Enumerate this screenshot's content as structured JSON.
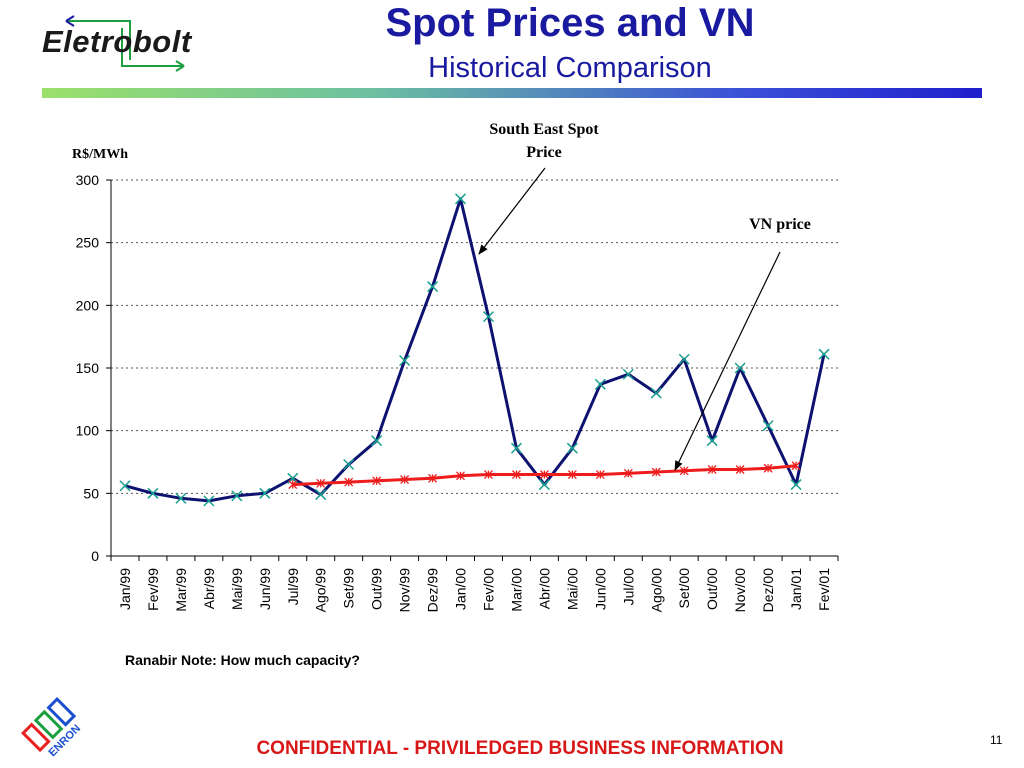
{
  "logo": {
    "name": "Eletrobolt"
  },
  "header": {
    "title": "Spot Prices and VN",
    "subtitle": "Historical Comparison"
  },
  "footer": {
    "confidential": "CONFIDENTIAL - PRIVILEDGED BUSINESS INFORMATION",
    "page": "11",
    "enron_logo_text": "ENRON"
  },
  "note": "Ranabir Note:  How much capacity?",
  "colors": {
    "spot": "#0d1270",
    "vn": "#ee1c1c",
    "spot_marker": "#1aa090",
    "title": "#1a1aa0",
    "footer": "#d81818"
  },
  "chart_data": {
    "type": "line",
    "ylabel": "R$/MWh",
    "ylim": [
      0,
      300
    ],
    "yticks": [
      "0",
      "50",
      "100",
      "150",
      "200",
      "250",
      "300"
    ],
    "grid": "horizontal dotted",
    "categories": [
      "Jan/99",
      "Fev/99",
      "Mar/99",
      "Abr/99",
      "Mai/99",
      "Jun/99",
      "Jul/99",
      "Ago/99",
      "Set/99",
      "Out/99",
      "Nov/99",
      "Dez/99",
      "Jan/00",
      "Fev/00",
      "Mar/00",
      "Abr/00",
      "Mai/00",
      "Jun/00",
      "Jul/00",
      "Ago/00",
      "Set/00",
      "Out/00",
      "Nov/00",
      "Dez/00",
      "Jan/01",
      "Fev/01"
    ],
    "series": [
      {
        "name": "South East Spot Price",
        "values": [
          56,
          50,
          46,
          44,
          48,
          50,
          62,
          49,
          73,
          92,
          156,
          215,
          285,
          191,
          86,
          57,
          86,
          137,
          145,
          130,
          157,
          92,
          150,
          104,
          57,
          161
        ]
      },
      {
        "name": "VN price",
        "values": [
          null,
          null,
          null,
          null,
          null,
          null,
          57,
          58,
          59,
          60,
          61,
          62,
          64,
          65,
          65,
          65,
          65,
          65,
          66,
          67,
          68,
          69,
          69,
          70,
          72,
          null
        ]
      }
    ],
    "annotations": [
      {
        "text": "South East Spot\nPrice",
        "series": "South East Spot Price"
      },
      {
        "text": "VN price",
        "series": "VN price"
      }
    ]
  }
}
